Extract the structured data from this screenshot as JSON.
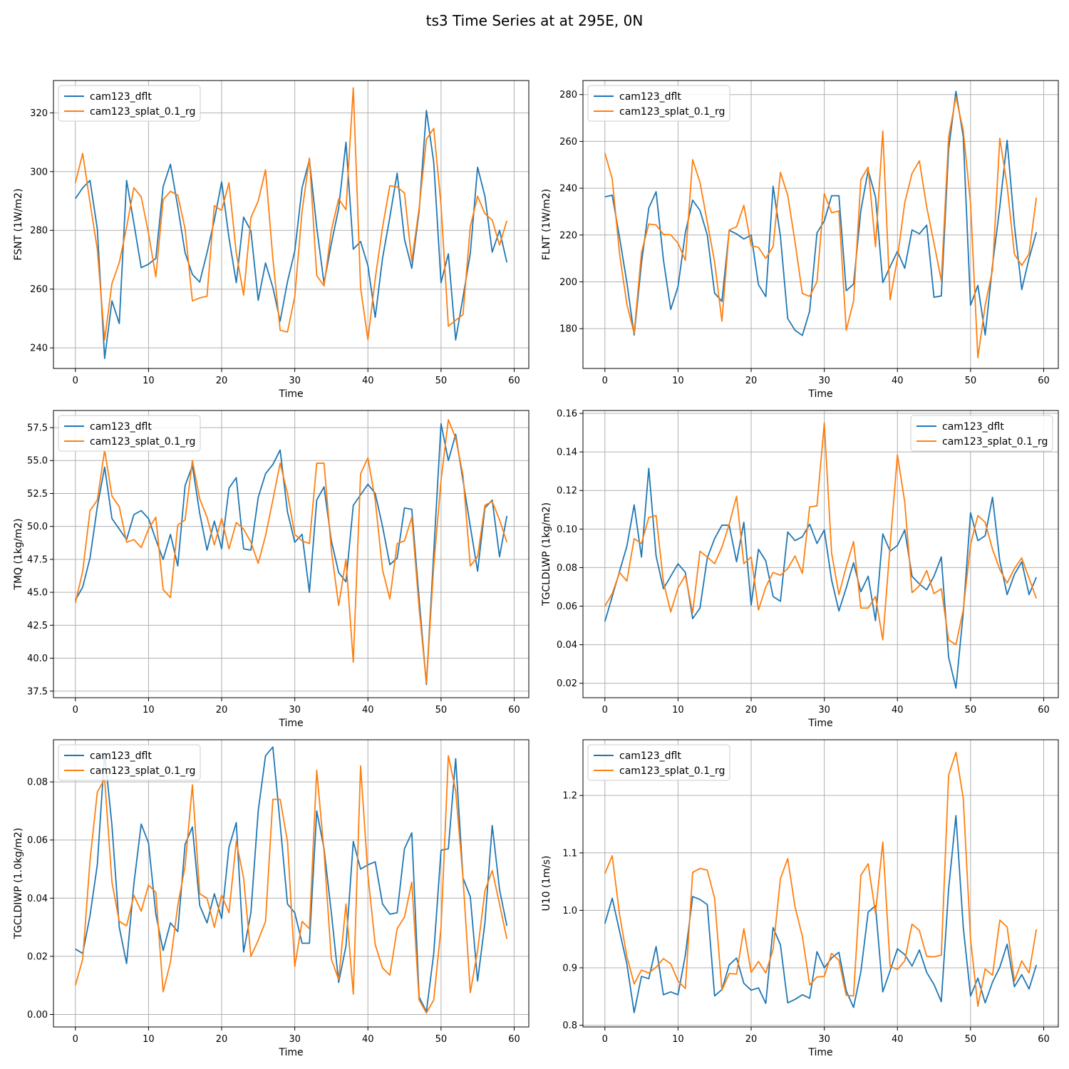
{
  "figure": {
    "title": "ts3 Time Series at at 295E, 0N"
  },
  "colors": {
    "cam123_dflt": "#1f77b4",
    "cam123_splat_0.1_rg": "#ff7f0e",
    "grid": "#b0b0b0"
  },
  "chart_data": [
    {
      "type": "line",
      "xlabel": "Time",
      "ylabel": "FSNT (1W/m2)",
      "xlim": [
        -3,
        62
      ],
      "ylim": [
        233,
        331
      ],
      "xticks": [
        0,
        10,
        20,
        30,
        40,
        50,
        60
      ],
      "yticks": [
        240,
        260,
        280,
        300,
        320
      ],
      "legend": "upper-left",
      "grid": true,
      "series": [
        {
          "name": "cam123_dflt",
          "values": [
            290.8,
            294.5,
            297.0,
            280.5,
            236.4,
            256.0,
            248.3,
            297.0,
            282.4,
            267.3,
            268.5,
            270.5,
            294.9,
            302.5,
            288.0,
            272.4,
            265.0,
            262.4,
            272.4,
            283.5,
            296.5,
            277.5,
            262.2,
            284.5,
            279.8,
            256.2,
            268.9,
            260.6,
            249.1,
            262.5,
            273.0,
            294.5,
            304.0,
            281.0,
            262.0,
            275.5,
            287.5,
            310.0,
            273.6,
            276.2,
            268.0,
            250.4,
            270.5,
            284.5,
            299.5,
            277.0,
            267.1,
            286.5,
            320.8,
            303.2,
            262.2,
            272.0,
            242.7,
            257.2,
            272.2,
            301.5,
            291.6,
            272.6,
            280.0,
            269.1
          ]
        },
        {
          "name": "cam123_splat_0.1_rg",
          "values": [
            296.2,
            306.2,
            289.5,
            273.5,
            242.7,
            261.9,
            269.0,
            281.0,
            294.5,
            291.4,
            279.0,
            264.2,
            290.4,
            293.3,
            292.0,
            280.5,
            256.0,
            257.0,
            257.6,
            288.4,
            286.8,
            296.2,
            272.3,
            258.0,
            284.3,
            290.0,
            300.6,
            270.5,
            246.0,
            245.4,
            257.5,
            286.5,
            304.6,
            264.6,
            261.1,
            280.0,
            290.7,
            287.0,
            328.5,
            260.4,
            242.8,
            263.5,
            281.0,
            295.2,
            294.8,
            292.7,
            269.5,
            287.5,
            311.0,
            314.7,
            288.5,
            247.4,
            249.4,
            251.3,
            281.3,
            291.6,
            285.7,
            283.5,
            275.0,
            283.3
          ]
        }
      ]
    },
    {
      "type": "line",
      "xlabel": "Time",
      "ylabel": "FLNT (1W/m2)",
      "xlim": [
        -3,
        62
      ],
      "ylim": [
        163,
        286
      ],
      "xticks": [
        0,
        10,
        20,
        30,
        40,
        50,
        60
      ],
      "yticks": [
        180,
        200,
        220,
        240,
        260,
        280
      ],
      "legend": "upper-left",
      "grid": true,
      "series": [
        {
          "name": "cam123_dflt",
          "values": [
            236.3,
            237.0,
            219.0,
            199.8,
            177.3,
            208.0,
            231.5,
            238.5,
            209.5,
            188.2,
            198.0,
            221.0,
            234.9,
            230.5,
            220.0,
            195.2,
            191.7,
            222.0,
            220.5,
            218.3,
            220.0,
            198.8,
            193.7,
            240.8,
            219.5,
            184.3,
            179.3,
            177.1,
            187.5,
            220.9,
            226.0,
            236.8,
            236.8,
            196.2,
            199.0,
            230.5,
            247.7,
            236.3,
            199.7,
            206.5,
            213.0,
            205.8,
            222.2,
            220.5,
            224.2,
            193.4,
            194.0,
            256.5,
            281.4,
            262.0,
            190.0,
            198.5,
            177.3,
            207.0,
            232.0,
            260.4,
            224.0,
            196.7,
            210.0,
            221.2
          ]
        },
        {
          "name": "cam123_splat_0.1_rg",
          "values": [
            255.0,
            244.0,
            212.0,
            190.5,
            178.0,
            212.5,
            224.7,
            224.3,
            220.3,
            220.1,
            216.5,
            209.2,
            252.2,
            242.5,
            225.5,
            208.5,
            183.2,
            222.2,
            223.5,
            232.7,
            215.5,
            214.7,
            210.0,
            215.0,
            246.7,
            237.0,
            217.0,
            195.0,
            193.8,
            200.0,
            237.7,
            229.5,
            230.3,
            179.3,
            191.7,
            243.7,
            249.0,
            215.0,
            264.4,
            192.3,
            210.0,
            233.8,
            246.3,
            251.7,
            232.0,
            216.5,
            200.5,
            261.7,
            279.0,
            264.7,
            233.5,
            167.6,
            190.0,
            205.0,
            261.3,
            241.0,
            211.8,
            207.0,
            212.0,
            236.0
          ]
        }
      ]
    },
    {
      "type": "line",
      "xlabel": "Time",
      "ylabel": "TMQ (1kg/m2)",
      "xlim": [
        -3,
        62
      ],
      "ylim": [
        37,
        58.8
      ],
      "xticks": [
        0,
        10,
        20,
        30,
        40,
        50,
        60
      ],
      "yticks": [
        37.5,
        40.0,
        42.5,
        45.0,
        47.5,
        50.0,
        52.5,
        55.0,
        57.5
      ],
      "legend": "upper-left",
      "grid": true,
      "series": [
        {
          "name": "cam123_dflt",
          "values": [
            44.4,
            45.4,
            47.6,
            51.5,
            54.5,
            50.6,
            49.8,
            49.0,
            50.9,
            51.2,
            50.6,
            49.0,
            47.5,
            49.4,
            47.0,
            53.1,
            54.6,
            51.0,
            48.2,
            50.4,
            48.3,
            52.9,
            53.7,
            48.3,
            48.2,
            52.2,
            54.0,
            54.7,
            55.8,
            51.1,
            48.8,
            49.4,
            45.0,
            52.0,
            53.0,
            48.9,
            46.5,
            45.8,
            51.6,
            52.4,
            53.2,
            52.5,
            50.0,
            47.1,
            47.6,
            51.4,
            51.3,
            44.5,
            38.0,
            48.0,
            57.8,
            55.0,
            57.0,
            53.5,
            50.0,
            46.6,
            51.4,
            52.0,
            47.7,
            50.8
          ]
        },
        {
          "name": "cam123_splat_0.1_rg",
          "values": [
            44.2,
            46.6,
            51.2,
            52.0,
            55.8,
            52.3,
            51.5,
            48.8,
            49.0,
            48.4,
            49.8,
            50.7,
            45.2,
            44.6,
            50.1,
            50.5,
            55.0,
            52.1,
            50.7,
            48.6,
            50.6,
            48.3,
            50.3,
            49.8,
            48.8,
            47.2,
            49.3,
            52.0,
            54.8,
            52.5,
            49.4,
            48.9,
            48.7,
            54.8,
            54.8,
            48.2,
            44.0,
            47.5,
            39.7,
            54.0,
            55.2,
            52.0,
            46.7,
            44.5,
            48.7,
            48.9,
            50.7,
            43.8,
            38.1,
            47.0,
            53.5,
            58.1,
            56.7,
            53.9,
            47.0,
            47.7,
            51.6,
            51.9,
            50.5,
            48.8
          ]
        }
      ]
    },
    {
      "type": "line",
      "xlabel": "Time",
      "ylabel": "TGCLDLWP (1kg/m2)",
      "xlim": [
        -3,
        62
      ],
      "ylim": [
        0.0125,
        0.1615
      ],
      "xticks": [
        0,
        10,
        20,
        30,
        40,
        50,
        60
      ],
      "yticks": [
        0.02,
        0.04,
        0.06,
        0.08,
        0.1,
        0.12,
        0.14,
        0.16
      ],
      "legend": "upper-right",
      "grid": true,
      "series": [
        {
          "name": "cam123_dflt",
          "values": [
            0.052,
            0.065,
            0.078,
            0.091,
            0.1125,
            0.0855,
            0.1315,
            0.086,
            0.069,
            0.0755,
            0.082,
            0.0775,
            0.0535,
            0.059,
            0.085,
            0.095,
            0.102,
            0.102,
            0.083,
            0.1035,
            0.0605,
            0.0895,
            0.0835,
            0.065,
            0.0625,
            0.0985,
            0.094,
            0.096,
            0.1025,
            0.0925,
            0.0995,
            0.0735,
            0.0575,
            0.0695,
            0.0825,
            0.0675,
            0.0755,
            0.0525,
            0.0975,
            0.0885,
            0.0915,
            0.0995,
            0.0755,
            0.0715,
            0.0685,
            0.0755,
            0.0855,
            0.0335,
            0.0175,
            0.0565,
            0.1085,
            0.094,
            0.0965,
            0.1165,
            0.0835,
            0.066,
            0.0765,
            0.083,
            0.066,
            0.075
          ]
        },
        {
          "name": "cam123_splat_0.1_rg",
          "values": [
            0.06,
            0.0665,
            0.0775,
            0.073,
            0.095,
            0.0925,
            0.106,
            0.107,
            0.0725,
            0.057,
            0.0695,
            0.076,
            0.0565,
            0.0885,
            0.0855,
            0.082,
            0.0905,
            0.1025,
            0.117,
            0.082,
            0.0855,
            0.058,
            0.07,
            0.0775,
            0.076,
            0.0795,
            0.086,
            0.077,
            0.1115,
            0.112,
            0.155,
            0.0875,
            0.066,
            0.0805,
            0.0935,
            0.059,
            0.059,
            0.065,
            0.0425,
            0.0915,
            0.1385,
            0.114,
            0.067,
            0.0705,
            0.0785,
            0.0665,
            0.069,
            0.0425,
            0.04,
            0.058,
            0.092,
            0.107,
            0.1035,
            0.0895,
            0.079,
            0.072,
            0.0795,
            0.085,
            0.0745,
            0.064
          ]
        }
      ]
    },
    {
      "type": "line",
      "xlabel": "Time",
      "ylabel": "TGCLDIWP (1.0kg/m2)",
      "xlim": [
        -3,
        62
      ],
      "ylim": [
        -0.0043,
        0.0945
      ],
      "xticks": [
        0,
        10,
        20,
        30,
        40,
        50,
        60
      ],
      "yticks": [
        0.0,
        0.02,
        0.04,
        0.06,
        0.08
      ],
      "legend": "upper-left",
      "grid": true,
      "series": [
        {
          "name": "cam123_dflt",
          "values": [
            0.0225,
            0.021,
            0.034,
            0.0515,
            0.09,
            0.065,
            0.03,
            0.0175,
            0.045,
            0.0655,
            0.059,
            0.0345,
            0.022,
            0.0315,
            0.0285,
            0.0585,
            0.0645,
            0.0375,
            0.0315,
            0.0415,
            0.033,
            0.0575,
            0.066,
            0.0215,
            0.035,
            0.07,
            0.089,
            0.092,
            0.0655,
            0.038,
            0.035,
            0.0245,
            0.0245,
            0.07,
            0.057,
            0.035,
            0.011,
            0.0235,
            0.0595,
            0.05,
            0.0515,
            0.0525,
            0.038,
            0.0345,
            0.035,
            0.057,
            0.0625,
            0.006,
            0.001,
            0.021,
            0.0565,
            0.057,
            0.088,
            0.047,
            0.0405,
            0.0115,
            0.0315,
            0.065,
            0.043,
            0.0305
          ]
        },
        {
          "name": "cam123_splat_0.1_rg",
          "values": [
            0.01,
            0.019,
            0.053,
            0.0765,
            0.081,
            0.0455,
            0.032,
            0.0305,
            0.041,
            0.0355,
            0.0445,
            0.042,
            0.0078,
            0.018,
            0.0375,
            0.051,
            0.079,
            0.0415,
            0.04,
            0.03,
            0.041,
            0.035,
            0.0595,
            0.047,
            0.02,
            0.0255,
            0.032,
            0.074,
            0.074,
            0.0595,
            0.0165,
            0.032,
            0.0295,
            0.084,
            0.056,
            0.019,
            0.012,
            0.038,
            0.007,
            0.0855,
            0.048,
            0.024,
            0.016,
            0.0135,
            0.0295,
            0.0335,
            0.0455,
            0.005,
            0.0005,
            0.005,
            0.03,
            0.089,
            0.077,
            0.047,
            0.0075,
            0.022,
            0.0425,
            0.0495,
            0.038,
            0.026
          ]
        }
      ]
    },
    {
      "type": "line",
      "xlabel": "Time",
      "ylabel": "U10 (1m/s)",
      "xlim": [
        -3,
        62
      ],
      "ylim": [
        0.797,
        1.297
      ],
      "xticks": [
        0,
        10,
        20,
        30,
        40,
        50,
        60
      ],
      "yticks": [
        0.8,
        0.9,
        1.0,
        1.1,
        1.2
      ],
      "legend": "upper-left",
      "grid": true,
      "series": [
        {
          "name": "cam123_dflt",
          "values": [
            0.977,
            1.021,
            0.964,
            0.907,
            0.822,
            0.885,
            0.881,
            0.937,
            0.853,
            0.858,
            0.853,
            0.922,
            1.024,
            1.019,
            1.01,
            0.851,
            0.862,
            0.905,
            0.917,
            0.873,
            0.861,
            0.865,
            0.838,
            0.97,
            0.94,
            0.839,
            0.845,
            0.853,
            0.847,
            0.928,
            0.9,
            0.917,
            0.927,
            0.86,
            0.831,
            0.893,
            0.997,
            1.008,
            0.858,
            0.895,
            0.933,
            0.923,
            0.903,
            0.931,
            0.892,
            0.871,
            0.841,
            1.037,
            1.165,
            0.971,
            0.851,
            0.882,
            0.839,
            0.875,
            0.901,
            0.941,
            0.867,
            0.888,
            0.863,
            0.905
          ]
        },
        {
          "name": "cam123_splat_0.1_rg",
          "values": [
            1.064,
            1.095,
            0.993,
            0.92,
            0.872,
            0.896,
            0.891,
            0.901,
            0.916,
            0.907,
            0.877,
            0.864,
            1.066,
            1.073,
            1.07,
            1.021,
            0.861,
            0.89,
            0.889,
            0.968,
            0.892,
            0.911,
            0.891,
            0.932,
            1.055,
            1.09,
            1.006,
            0.955,
            0.87,
            0.884,
            0.885,
            0.925,
            0.913,
            0.852,
            0.851,
            1.061,
            1.081,
            0.995,
            1.119,
            0.903,
            0.897,
            0.912,
            0.976,
            0.965,
            0.92,
            0.919,
            0.922,
            1.235,
            1.275,
            1.195,
            0.95,
            0.833,
            0.898,
            0.887,
            0.983,
            0.971,
            0.877,
            0.912,
            0.891,
            0.967
          ]
        }
      ]
    }
  ]
}
